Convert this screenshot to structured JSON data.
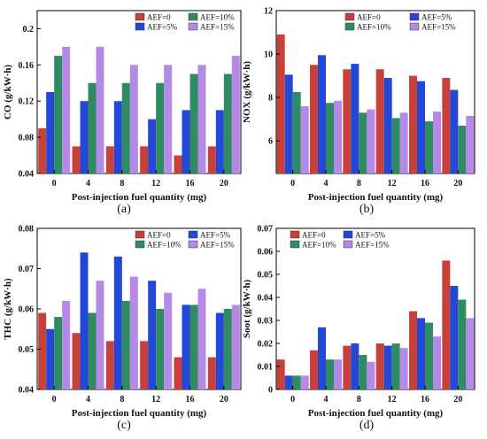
{
  "colors": {
    "AEF=0": "#c8403a",
    "AEF=5%": "#2448d6",
    "AEF=10%": "#2e8b62",
    "AEF=15%": "#b48ae6"
  },
  "chart_data": [
    {
      "id": "a",
      "type": "bar",
      "panel_label": "(a)",
      "xlabel": "Post-injection fuel quantity (mg)",
      "ylabel": "CO (g/kW·h)",
      "categories": [
        "0",
        "4",
        "8",
        "12",
        "16",
        "20"
      ],
      "ylim": [
        0.04,
        0.22
      ],
      "yticks": [
        "0.04",
        "0.08",
        "0.12",
        "0.16",
        "0.2"
      ],
      "ytick_values": [
        0.04,
        0.08,
        0.12,
        0.16,
        0.2
      ],
      "legend_position": "top-right",
      "legend_order": [
        "AEF=0",
        "AEF=10%",
        "AEF=5%",
        "AEF=15%"
      ],
      "legend_cols": 2,
      "series": [
        {
          "name": "AEF=0",
          "values": [
            0.09,
            0.07,
            0.07,
            0.07,
            0.06,
            0.07
          ]
        },
        {
          "name": "AEF=5%",
          "values": [
            0.13,
            0.12,
            0.12,
            0.1,
            0.11,
            0.11
          ]
        },
        {
          "name": "AEF=10%",
          "values": [
            0.17,
            0.14,
            0.14,
            0.14,
            0.15,
            0.15
          ]
        },
        {
          "name": "AEF=15%",
          "values": [
            0.18,
            0.18,
            0.16,
            0.16,
            0.16,
            0.17
          ]
        }
      ]
    },
    {
      "id": "b",
      "type": "bar",
      "panel_label": "(b)",
      "xlabel": "Post-injection fuel quantity (mg)",
      "ylabel": "NOX (g/kW·h)",
      "categories": [
        "0",
        "4",
        "8",
        "12",
        "16",
        "20"
      ],
      "ylim": [
        4.5,
        12
      ],
      "yticks": [
        "6",
        "8",
        "10",
        "12"
      ],
      "ytick_values": [
        6,
        8,
        10,
        12
      ],
      "legend_position": "top-right",
      "legend_order": [
        "AEF=0",
        "AEF=5%",
        "AEF=10%",
        "AEF=15%"
      ],
      "legend_cols": 2,
      "series": [
        {
          "name": "AEF=0",
          "values": [
            10.9,
            9.5,
            9.3,
            9.3,
            9.0,
            8.9
          ]
        },
        {
          "name": "AEF=5%",
          "values": [
            9.05,
            9.95,
            9.55,
            8.9,
            8.75,
            8.35
          ]
        },
        {
          "name": "AEF=10%",
          "values": [
            8.25,
            7.75,
            7.3,
            7.05,
            6.9,
            6.7
          ]
        },
        {
          "name": "AEF=15%",
          "values": [
            7.6,
            7.85,
            7.45,
            7.3,
            7.35,
            7.15
          ]
        }
      ]
    },
    {
      "id": "c",
      "type": "bar",
      "panel_label": "(c)",
      "xlabel": "Post-injection fuel quantity (mg)",
      "ylabel": "THC (g/kW·h)",
      "categories": [
        "0",
        "4",
        "8",
        "12",
        "16",
        "20"
      ],
      "ylim": [
        0.04,
        0.08
      ],
      "yticks": [
        "0.04",
        "0.05",
        "0.06",
        "0.07",
        "0.08"
      ],
      "ytick_values": [
        0.04,
        0.05,
        0.06,
        0.07,
        0.08
      ],
      "legend_position": "top-right",
      "legend_order": [
        "AEF=0",
        "AEF=5%",
        "AEF=10%",
        "AEF=15%"
      ],
      "legend_cols": 2,
      "series": [
        {
          "name": "AEF=0",
          "values": [
            0.059,
            0.054,
            0.052,
            0.052,
            0.048,
            0.048
          ]
        },
        {
          "name": "AEF=5%",
          "values": [
            0.055,
            0.074,
            0.073,
            0.067,
            0.061,
            0.059
          ]
        },
        {
          "name": "AEF=10%",
          "values": [
            0.058,
            0.059,
            0.062,
            0.06,
            0.061,
            0.06
          ]
        },
        {
          "name": "AEF=15%",
          "values": [
            0.062,
            0.067,
            0.068,
            0.064,
            0.065,
            0.061
          ]
        }
      ]
    },
    {
      "id": "d",
      "type": "bar",
      "panel_label": "(d)",
      "xlabel": "Post-injection fuel quantity (mg)",
      "ylabel": "Soot (g/kW·h)",
      "categories": [
        "0",
        "4",
        "8",
        "12",
        "16",
        "20"
      ],
      "ylim": [
        0,
        0.07
      ],
      "yticks": [
        "0",
        "0.01",
        "0.02",
        "0.03",
        "0.04",
        "0.05",
        "0.06",
        "0.07"
      ],
      "ytick_values": [
        0,
        0.01,
        0.02,
        0.03,
        0.04,
        0.05,
        0.06,
        0.07
      ],
      "legend_position": "top-left",
      "legend_order": [
        "AEF=0",
        "AEF=5%",
        "AEF=10%",
        "AEF=15%"
      ],
      "legend_cols": 2,
      "series": [
        {
          "name": "AEF=0",
          "values": [
            0.013,
            0.017,
            0.019,
            0.02,
            0.034,
            0.056
          ]
        },
        {
          "name": "AEF=5%",
          "values": [
            0.006,
            0.027,
            0.02,
            0.019,
            0.031,
            0.045
          ]
        },
        {
          "name": "AEF=10%",
          "values": [
            0.006,
            0.013,
            0.015,
            0.02,
            0.029,
            0.039
          ]
        },
        {
          "name": "AEF=15%",
          "values": [
            0.006,
            0.013,
            0.012,
            0.018,
            0.023,
            0.031
          ]
        }
      ]
    }
  ]
}
